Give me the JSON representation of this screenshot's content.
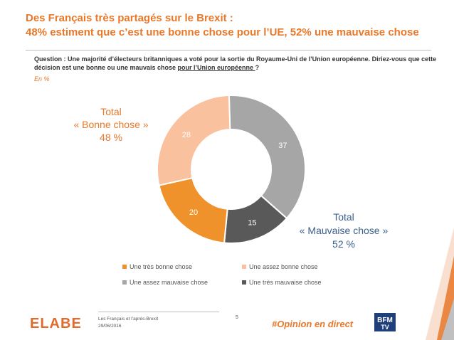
{
  "title": {
    "line1": "Des Français très partagés sur le Brexit :",
    "line2": "48% estiment que c’est une bonne chose pour l’UE, 52% une mauvaise chose"
  },
  "question": {
    "text": "Question : Une majorité d’électeurs britanniques a voté pour la sortie du Royaume-Uni de l’Union européenne. Diriez-vous que cette décision est une bonne ou une mauvais chose ",
    "underlined": "pour l’Union européenne ",
    "suffix": "?"
  },
  "unit": "En %",
  "totals": {
    "good": {
      "line1": "Total",
      "line2": "« Bonne chose »",
      "line3": "48 %"
    },
    "bad": {
      "line1": "Total",
      "line2": "« Mauvaise chose »",
      "line3": "52 %"
    }
  },
  "chart_data": {
    "type": "pie",
    "donut": true,
    "categories": [
      "Une assez mauvaise chose",
      "Une très mauvaise chose",
      "Une très bonne chose",
      "Une assez bonne chose"
    ],
    "values": [
      37,
      15,
      20,
      28
    ],
    "colors": [
      "#a6a6a6",
      "#595959",
      "#f0922b",
      "#f9c19d"
    ],
    "label_colors": [
      "#ffffff",
      "#ffffff",
      "#ffffff",
      "#ffffff"
    ],
    "legend": [
      {
        "label": "Une très bonne chose",
        "color": "#f0922b"
      },
      {
        "label": "Une assez bonne chose",
        "color": "#f9c19d"
      },
      {
        "label": "Une assez mauvaise chose",
        "color": "#a6a6a6"
      },
      {
        "label": "Une très mauvaise chose",
        "color": "#595959"
      }
    ]
  },
  "footer": {
    "logo": "ELABE",
    "study": "Les Français et l’après-Brexit",
    "date": "29/06/2016",
    "page": "5",
    "hashtag": "#Opinion en direct",
    "partner_logo_lines": [
      "BFM",
      "TV"
    ]
  }
}
